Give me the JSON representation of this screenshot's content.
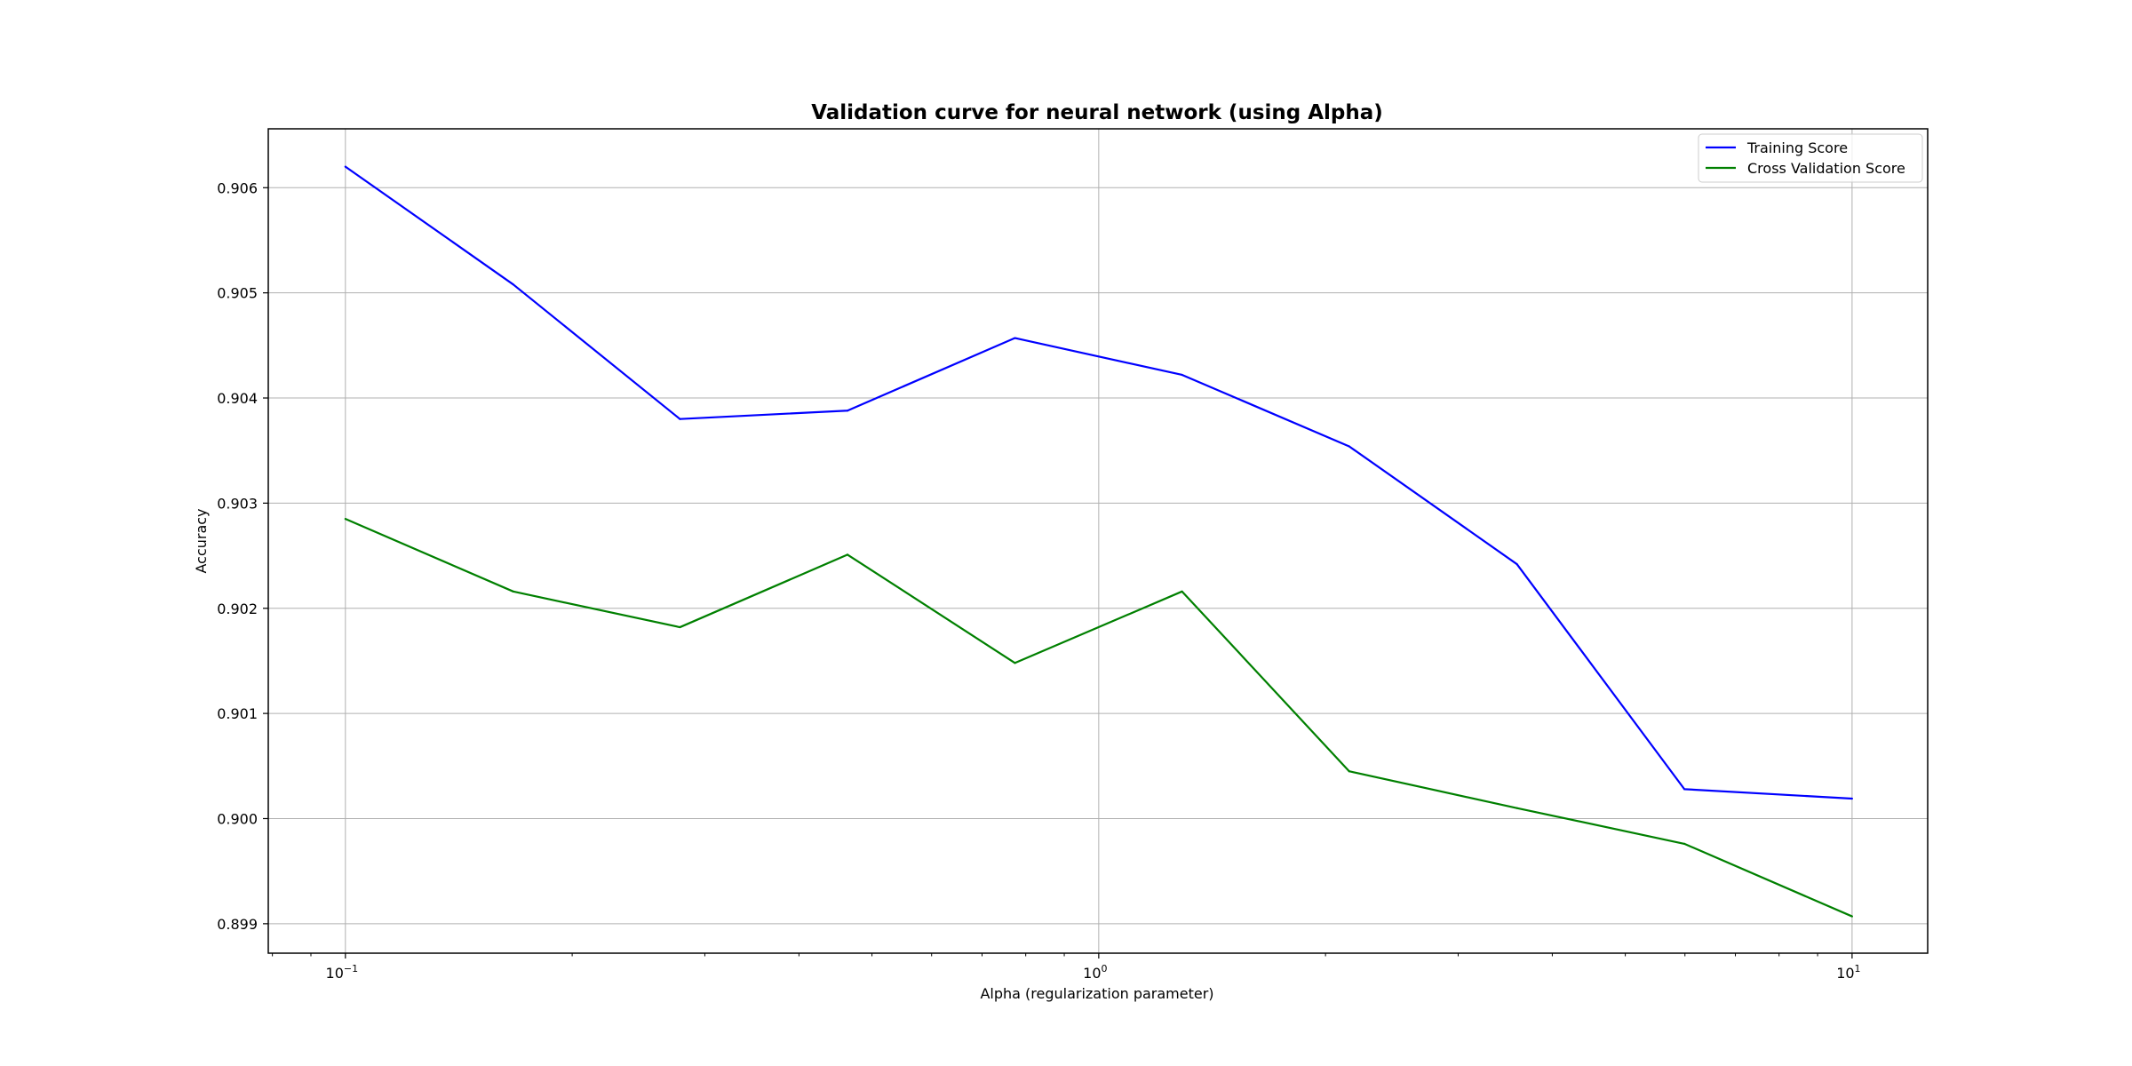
{
  "chart_data": {
    "type": "line",
    "title": "Validation curve for neural network (using Alpha)",
    "xlabel": "Alpha (regularization parameter)",
    "ylabel": "Accuracy",
    "xscale": "log",
    "xlim": [
      0.079,
      12.6
    ],
    "ylim": [
      0.89872,
      0.90656
    ],
    "grid": true,
    "legend_position": "top-right",
    "x": [
      0.1,
      0.167,
      0.278,
      0.464,
      0.774,
      1.29,
      2.15,
      3.59,
      5.99,
      10.0
    ],
    "series": [
      {
        "name": "Training Score",
        "color": "#0000ff",
        "values": [
          0.9062,
          0.90508,
          0.9038,
          0.90388,
          0.90457,
          0.90422,
          0.90354,
          0.90242,
          0.90028,
          0.90019
        ]
      },
      {
        "name": "Cross Validation Score",
        "color": "#008000",
        "values": [
          0.90285,
          0.90216,
          0.90182,
          0.90251,
          0.90148,
          0.90216,
          0.90045,
          0.9001,
          0.89976,
          0.89907
        ]
      }
    ],
    "y_ticks": [
      {
        "value": 0.899,
        "label": "0.899"
      },
      {
        "value": 0.9,
        "label": "0.900"
      },
      {
        "value": 0.901,
        "label": "0.901"
      },
      {
        "value": 0.902,
        "label": "0.902"
      },
      {
        "value": 0.903,
        "label": "0.903"
      },
      {
        "value": 0.904,
        "label": "0.904"
      },
      {
        "value": 0.905,
        "label": "0.905"
      },
      {
        "value": 0.906,
        "label": "0.906"
      }
    ],
    "x_ticks": [
      {
        "value": 0.1,
        "base": "10",
        "exp": "−1"
      },
      {
        "value": 1,
        "base": "10",
        "exp": "0"
      },
      {
        "value": 10,
        "base": "10",
        "exp": "1"
      }
    ]
  }
}
